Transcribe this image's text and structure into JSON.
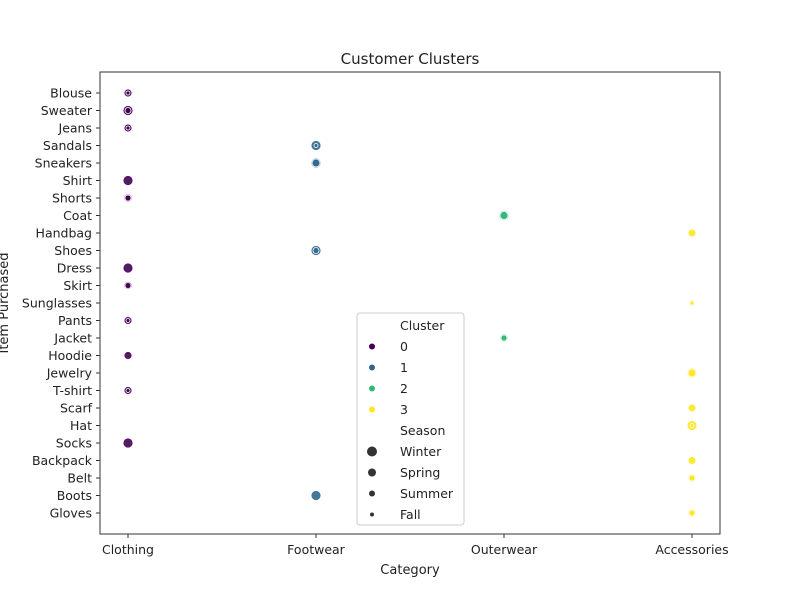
{
  "chart_data": {
    "type": "scatter",
    "title": "Customer Clusters",
    "xlabel": "Category",
    "ylabel": "Item Purchased",
    "x_categories": [
      "Clothing",
      "Footwear",
      "Outerwear",
      "Accessories"
    ],
    "y_categories": [
      "Blouse",
      "Sweater",
      "Jeans",
      "Sandals",
      "Sneakers",
      "Shirt",
      "Shorts",
      "Coat",
      "Handbag",
      "Shoes",
      "Dress",
      "Skirt",
      "Sunglasses",
      "Pants",
      "Jacket",
      "Hoodie",
      "Jewelry",
      "T-shirt",
      "Scarf",
      "Hat",
      "Socks",
      "Backpack",
      "Belt",
      "Boots",
      "Gloves"
    ],
    "cluster_colors": {
      "0": "#440154",
      "1": "#31688e",
      "2": "#35b779",
      "3": "#fde725"
    },
    "season_sizes": {
      "Winter": 10,
      "Spring": 8,
      "Summer": 6,
      "Fall": 4
    },
    "points": [
      {
        "category": "Clothing",
        "item": "Blouse",
        "cluster": 0,
        "season": "Fall"
      },
      {
        "category": "Clothing",
        "item": "Blouse",
        "cluster": 0,
        "season": "Spring"
      },
      {
        "category": "Clothing",
        "item": "Sweater",
        "cluster": 0,
        "season": "Winter"
      },
      {
        "category": "Clothing",
        "item": "Sweater",
        "cluster": 0,
        "season": "Summer"
      },
      {
        "category": "Clothing",
        "item": "Jeans",
        "cluster": 0,
        "season": "Spring"
      },
      {
        "category": "Clothing",
        "item": "Jeans",
        "cluster": 0,
        "season": "Fall"
      },
      {
        "category": "Footwear",
        "item": "Sandals",
        "cluster": 1,
        "season": "Winter"
      },
      {
        "category": "Footwear",
        "item": "Sandals",
        "cluster": 1,
        "season": "Fall"
      },
      {
        "category": "Footwear",
        "item": "Sneakers",
        "cluster": 1,
        "season": "Winter"
      },
      {
        "category": "Footwear",
        "item": "Sneakers",
        "cluster": 1,
        "season": "Spring"
      },
      {
        "category": "Clothing",
        "item": "Shirt",
        "cluster": 0,
        "season": "Winter"
      },
      {
        "category": "Clothing",
        "item": "Shorts",
        "cluster": 0,
        "season": "Spring"
      },
      {
        "category": "Clothing",
        "item": "Shorts",
        "cluster": 0,
        "season": "Summer"
      },
      {
        "category": "Outerwear",
        "item": "Coat",
        "cluster": 2,
        "season": "Winter"
      },
      {
        "category": "Outerwear",
        "item": "Coat",
        "cluster": 2,
        "season": "Spring"
      },
      {
        "category": "Accessories",
        "item": "Handbag",
        "cluster": 3,
        "season": "Spring"
      },
      {
        "category": "Footwear",
        "item": "Shoes",
        "cluster": 1,
        "season": "Winter"
      },
      {
        "category": "Footwear",
        "item": "Shoes",
        "cluster": 1,
        "season": "Summer"
      },
      {
        "category": "Clothing",
        "item": "Dress",
        "cluster": 0,
        "season": "Winter"
      },
      {
        "category": "Clothing",
        "item": "Skirt",
        "cluster": 0,
        "season": "Spring"
      },
      {
        "category": "Clothing",
        "item": "Skirt",
        "cluster": 0,
        "season": "Summer"
      },
      {
        "category": "Accessories",
        "item": "Sunglasses",
        "cluster": 3,
        "season": "Summer"
      },
      {
        "category": "Accessories",
        "item": "Sunglasses",
        "cluster": 3,
        "season": "Fall"
      },
      {
        "category": "Clothing",
        "item": "Pants",
        "cluster": 0,
        "season": "Spring"
      },
      {
        "category": "Clothing",
        "item": "Pants",
        "cluster": 0,
        "season": "Fall"
      },
      {
        "category": "Outerwear",
        "item": "Jacket",
        "cluster": 2,
        "season": "Spring"
      },
      {
        "category": "Outerwear",
        "item": "Jacket",
        "cluster": 2,
        "season": "Summer"
      },
      {
        "category": "Clothing",
        "item": "Hoodie",
        "cluster": 0,
        "season": "Spring"
      },
      {
        "category": "Accessories",
        "item": "Jewelry",
        "cluster": 3,
        "season": "Winter"
      },
      {
        "category": "Accessories",
        "item": "Jewelry",
        "cluster": 3,
        "season": "Spring"
      },
      {
        "category": "Clothing",
        "item": "T-shirt",
        "cluster": 0,
        "season": "Spring"
      },
      {
        "category": "Clothing",
        "item": "T-shirt",
        "cluster": 0,
        "season": "Fall"
      },
      {
        "category": "Accessories",
        "item": "Scarf",
        "cluster": 3,
        "season": "Spring"
      },
      {
        "category": "Accessories",
        "item": "Hat",
        "cluster": 3,
        "season": "Winter"
      },
      {
        "category": "Accessories",
        "item": "Hat",
        "cluster": 3,
        "season": "Fall"
      },
      {
        "category": "Clothing",
        "item": "Socks",
        "cluster": 0,
        "season": "Winter"
      },
      {
        "category": "Accessories",
        "item": "Backpack",
        "cluster": 3,
        "season": "Spring"
      },
      {
        "category": "Accessories",
        "item": "Belt",
        "cluster": 3,
        "season": "Spring"
      },
      {
        "category": "Accessories",
        "item": "Belt",
        "cluster": 3,
        "season": "Summer"
      },
      {
        "category": "Footwear",
        "item": "Boots",
        "cluster": 1,
        "season": "Winter"
      },
      {
        "category": "Accessories",
        "item": "Gloves",
        "cluster": 3,
        "season": "Spring"
      },
      {
        "category": "Accessories",
        "item": "Gloves",
        "cluster": 3,
        "season": "Summer"
      }
    ],
    "legend": {
      "placement": "lower-center",
      "cluster_title": "Cluster",
      "cluster_entries": [
        "0",
        "1",
        "2",
        "3"
      ],
      "season_title": "Season",
      "season_entries": [
        "Winter",
        "Spring",
        "Summer",
        "Fall"
      ]
    },
    "grid": false
  }
}
